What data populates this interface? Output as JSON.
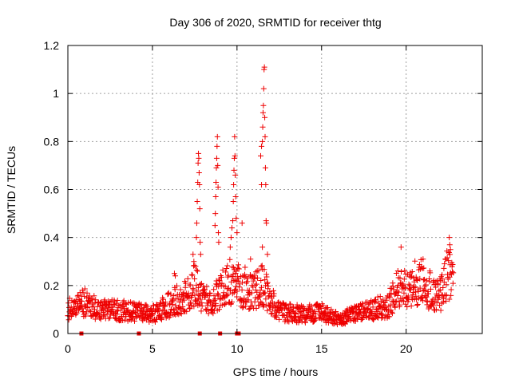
{
  "chart_data": {
    "type": "scatter",
    "title": "Day 306 of 2020, SRMTID for receiver thtg",
    "xlabel": "GPS time / hours",
    "ylabel": "SRMTID / TECUs",
    "xlim": [
      0,
      24.5
    ],
    "ylim": [
      0,
      1.2
    ],
    "x_ticks": [
      0,
      5,
      10,
      15,
      20
    ],
    "x_tick_labels": [
      "0",
      "5",
      "10",
      "15",
      "20"
    ],
    "y_ticks": [
      0,
      0.2,
      0.4,
      0.6,
      0.8,
      1.0,
      1.2
    ],
    "y_tick_labels": [
      "0",
      "0.2",
      "0.4",
      "0.6",
      "0.8",
      "1",
      "1.2"
    ],
    "grid": true,
    "marker": "+",
    "color": "#ee0000",
    "baseline_profile": [
      {
        "x": 0.0,
        "y": 0.1
      },
      {
        "x": 1.0,
        "y": 0.13
      },
      {
        "x": 1.5,
        "y": 0.11
      },
      {
        "x": 2.5,
        "y": 0.1
      },
      {
        "x": 4.0,
        "y": 0.09
      },
      {
        "x": 5.0,
        "y": 0.08
      },
      {
        "x": 6.0,
        "y": 0.12
      },
      {
        "x": 7.0,
        "y": 0.16
      },
      {
        "x": 7.5,
        "y": 0.2
      },
      {
        "x": 8.0,
        "y": 0.14
      },
      {
        "x": 8.5,
        "y": 0.13
      },
      {
        "x": 9.0,
        "y": 0.17
      },
      {
        "x": 9.5,
        "y": 0.22
      },
      {
        "x": 10.0,
        "y": 0.2
      },
      {
        "x": 10.5,
        "y": 0.19
      },
      {
        "x": 11.0,
        "y": 0.17
      },
      {
        "x": 11.5,
        "y": 0.2
      },
      {
        "x": 12.0,
        "y": 0.14
      },
      {
        "x": 12.5,
        "y": 0.09
      },
      {
        "x": 14.0,
        "y": 0.08
      },
      {
        "x": 15.0,
        "y": 0.09
      },
      {
        "x": 16.0,
        "y": 0.06
      },
      {
        "x": 17.0,
        "y": 0.08
      },
      {
        "x": 18.0,
        "y": 0.1
      },
      {
        "x": 19.0,
        "y": 0.12
      },
      {
        "x": 19.5,
        "y": 0.2
      },
      {
        "x": 20.0,
        "y": 0.2
      },
      {
        "x": 21.0,
        "y": 0.22
      },
      {
        "x": 21.5,
        "y": 0.17
      },
      {
        "x": 22.0,
        "y": 0.16
      },
      {
        "x": 22.5,
        "y": 0.27
      },
      {
        "x": 22.8,
        "y": 0.2
      }
    ],
    "spike_points": [
      {
        "x": 7.4,
        "y": 0.33
      },
      {
        "x": 7.45,
        "y": 0.3
      },
      {
        "x": 7.55,
        "y": 0.28
      },
      {
        "x": 7.6,
        "y": 0.4
      },
      {
        "x": 7.62,
        "y": 0.46
      },
      {
        "x": 7.65,
        "y": 0.55
      },
      {
        "x": 7.68,
        "y": 0.63
      },
      {
        "x": 7.7,
        "y": 0.71
      },
      {
        "x": 7.72,
        "y": 0.75
      },
      {
        "x": 7.74,
        "y": 0.73
      },
      {
        "x": 7.76,
        "y": 0.67
      },
      {
        "x": 7.78,
        "y": 0.62
      },
      {
        "x": 7.8,
        "y": 0.52
      },
      {
        "x": 7.82,
        "y": 0.38
      },
      {
        "x": 7.85,
        "y": 0.33
      },
      {
        "x": 8.7,
        "y": 0.45
      },
      {
        "x": 8.72,
        "y": 0.5
      },
      {
        "x": 8.74,
        "y": 0.57
      },
      {
        "x": 8.76,
        "y": 0.63
      },
      {
        "x": 8.78,
        "y": 0.69
      },
      {
        "x": 8.8,
        "y": 0.73
      },
      {
        "x": 8.82,
        "y": 0.78
      },
      {
        "x": 8.84,
        "y": 0.82
      },
      {
        "x": 8.86,
        "y": 0.7
      },
      {
        "x": 8.88,
        "y": 0.61
      },
      {
        "x": 8.9,
        "y": 0.42
      },
      {
        "x": 8.92,
        "y": 0.38
      },
      {
        "x": 9.6,
        "y": 0.36
      },
      {
        "x": 9.65,
        "y": 0.4
      },
      {
        "x": 9.7,
        "y": 0.44
      },
      {
        "x": 9.75,
        "y": 0.47
      },
      {
        "x": 9.78,
        "y": 0.55
      },
      {
        "x": 9.8,
        "y": 0.62
      },
      {
        "x": 9.82,
        "y": 0.68
      },
      {
        "x": 9.84,
        "y": 0.73
      },
      {
        "x": 9.86,
        "y": 0.82
      },
      {
        "x": 9.88,
        "y": 0.74
      },
      {
        "x": 9.9,
        "y": 0.66
      },
      {
        "x": 9.92,
        "y": 0.57
      },
      {
        "x": 9.95,
        "y": 0.48
      },
      {
        "x": 10.0,
        "y": 0.42
      },
      {
        "x": 10.3,
        "y": 0.46
      },
      {
        "x": 11.4,
        "y": 0.74
      },
      {
        "x": 11.45,
        "y": 0.78
      },
      {
        "x": 11.5,
        "y": 0.8
      },
      {
        "x": 11.52,
        "y": 0.86
      },
      {
        "x": 11.54,
        "y": 0.92
      },
      {
        "x": 11.56,
        "y": 0.95
      },
      {
        "x": 11.58,
        "y": 1.02
      },
      {
        "x": 11.6,
        "y": 1.1
      },
      {
        "x": 11.62,
        "y": 1.11
      },
      {
        "x": 11.64,
        "y": 0.9
      },
      {
        "x": 11.66,
        "y": 0.82
      },
      {
        "x": 11.68,
        "y": 0.69
      },
      {
        "x": 11.7,
        "y": 0.62
      },
      {
        "x": 11.72,
        "y": 0.47
      },
      {
        "x": 11.74,
        "y": 0.46
      },
      {
        "x": 11.45,
        "y": 0.62
      },
      {
        "x": 11.5,
        "y": 0.36
      },
      {
        "x": 11.8,
        "y": 0.33
      },
      {
        "x": 22.55,
        "y": 0.4
      },
      {
        "x": 22.58,
        "y": 0.37
      },
      {
        "x": 22.62,
        "y": 0.35
      },
      {
        "x": 19.7,
        "y": 0.36
      },
      {
        "x": 21.0,
        "y": 0.31
      },
      {
        "x": 10.8,
        "y": 0.31
      },
      {
        "x": 6.3,
        "y": 0.25
      },
      {
        "x": 6.35,
        "y": 0.24
      }
    ],
    "zero_points": [
      0.8,
      4.2,
      7.8,
      9.0,
      10.0,
      10.1
    ]
  }
}
